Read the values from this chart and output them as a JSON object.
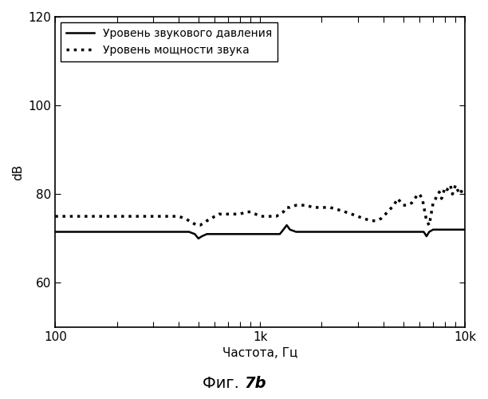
{
  "xlabel": "Частота, Гц",
  "ylabel": "dB",
  "xlim": [
    100,
    10000
  ],
  "ylim": [
    50,
    120
  ],
  "yticks": [
    60,
    80,
    100,
    120
  ],
  "legend_solid": "Уровень звукового давления",
  "legend_dashed": "Уровень мощности звука",
  "background_color": "#ffffff",
  "line_color": "#000000",
  "spl_x": [
    100,
    150,
    200,
    250,
    300,
    350,
    400,
    450,
    480,
    500,
    520,
    550,
    600,
    650,
    700,
    750,
    800,
    850,
    900,
    950,
    1000,
    1050,
    1100,
    1200,
    1250,
    1300,
    1350,
    1400,
    1500,
    1600,
    1700,
    1800,
    1900,
    2000,
    2200,
    2500,
    3000,
    3500,
    4000,
    4500,
    5000,
    5500,
    6000,
    6300,
    6500,
    6700,
    7000,
    7500,
    8000,
    8500,
    9000,
    9500,
    10000
  ],
  "spl_y": [
    71.5,
    71.5,
    71.5,
    71.5,
    71.5,
    71.5,
    71.5,
    71.5,
    71,
    70,
    70.5,
    71,
    71,
    71,
    71,
    71,
    71,
    71,
    71,
    71,
    71,
    71,
    71,
    71,
    71,
    72,
    73,
    72,
    71.5,
    71.5,
    71.5,
    71.5,
    71.5,
    71.5,
    71.5,
    71.5,
    71.5,
    71.5,
    71.5,
    71.5,
    71.5,
    71.5,
    71.5,
    71.5,
    70.5,
    71.5,
    72,
    72,
    72,
    72,
    72,
    72,
    72
  ],
  "swl_x": [
    100,
    130,
    160,
    200,
    250,
    300,
    350,
    400,
    430,
    450,
    470,
    490,
    510,
    530,
    550,
    580,
    600,
    630,
    650,
    700,
    750,
    800,
    850,
    900,
    950,
    1000,
    1050,
    1100,
    1150,
    1200,
    1250,
    1300,
    1350,
    1400,
    1500,
    1600,
    1700,
    1800,
    1900,
    2000,
    2100,
    2200,
    2400,
    2600,
    2800,
    3000,
    3200,
    3500,
    3700,
    3900,
    4000,
    4200,
    4500,
    4700,
    5000,
    5200,
    5500,
    5700,
    5900,
    6000,
    6200,
    6500,
    6700,
    7000,
    7200,
    7500,
    7700,
    8000,
    8200,
    8500,
    8700,
    9000,
    9200,
    9500,
    9700,
    10000
  ],
  "swl_y": [
    75,
    75,
    75,
    75,
    75,
    75,
    75,
    75,
    74.5,
    74,
    73.5,
    73,
    73,
    73.5,
    74,
    74.5,
    75,
    75.5,
    75.5,
    75.5,
    75.5,
    75.5,
    76,
    76,
    75.5,
    75,
    75,
    75,
    75,
    75,
    75.5,
    76,
    77,
    77,
    77.5,
    77.5,
    77.5,
    77,
    77,
    77,
    77,
    77,
    76.5,
    76,
    75.5,
    75,
    74.5,
    74,
    74,
    74.5,
    75,
    76,
    77.5,
    79,
    77.5,
    77.5,
    78,
    79,
    80,
    80,
    79,
    74,
    73,
    78,
    79,
    80.5,
    79,
    81.5,
    81,
    82,
    80,
    82,
    81,
    80,
    81,
    81.5
  ]
}
